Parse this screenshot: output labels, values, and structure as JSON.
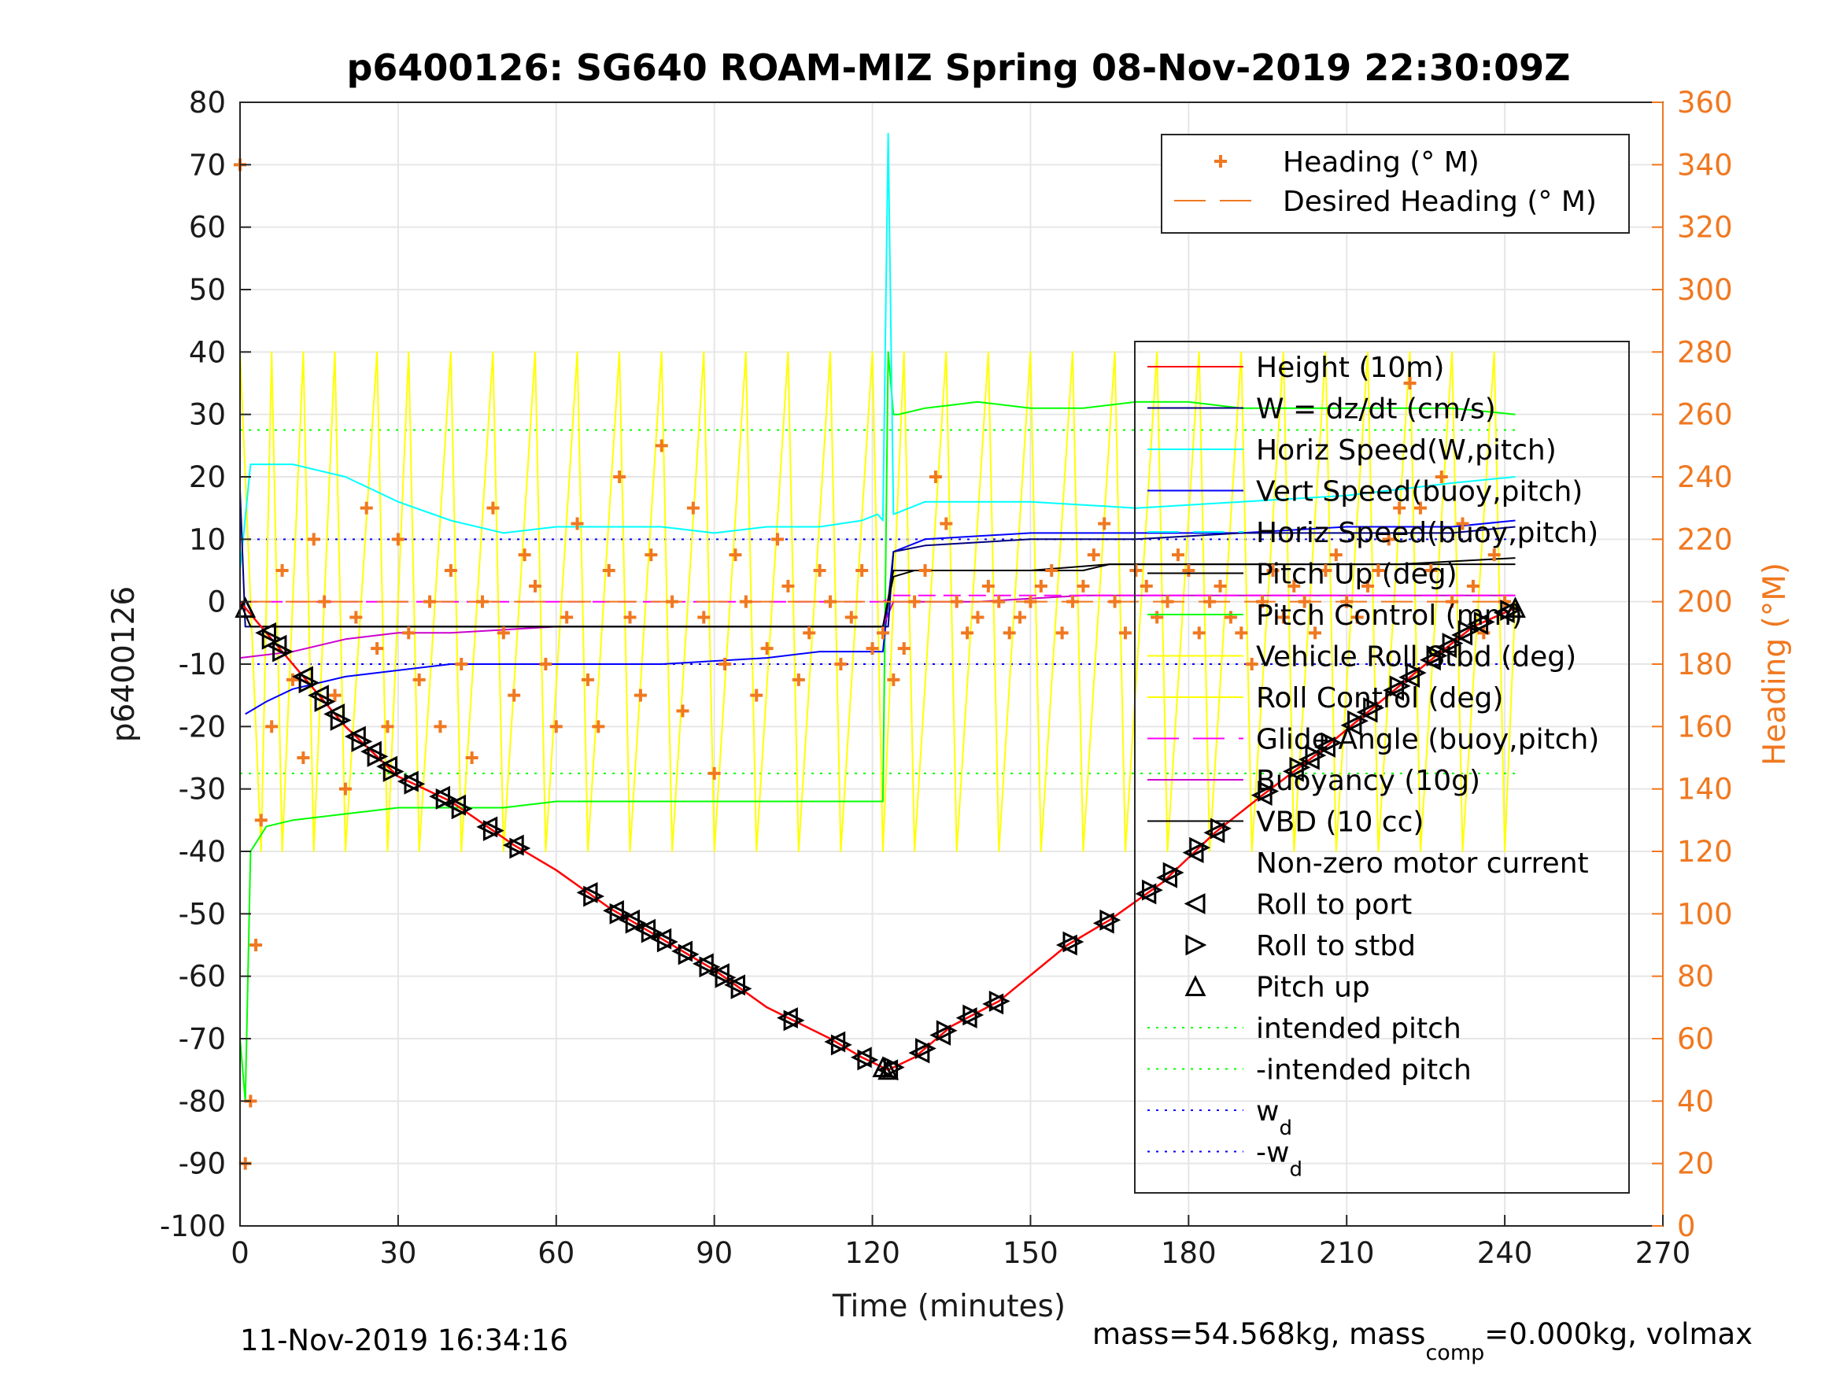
{
  "chart_data": {
    "type": "line",
    "title": "p6400126: SG640 ROAM-MIZ Spring 08-Nov-2019 22:30:09Z",
    "xlabel": "Time (minutes)",
    "ylabel": "p6400126",
    "ylabel_right": "Heading (°M)",
    "xlim": [
      0,
      270
    ],
    "ylim": [
      -100,
      80
    ],
    "ylim_right": [
      0,
      360
    ],
    "x_ticks": [
      "0",
      "30",
      "60",
      "90",
      "120",
      "150",
      "180",
      "210",
      "240",
      "270"
    ],
    "y_ticks": [
      "80",
      "70",
      "60",
      "50",
      "40",
      "30",
      "20",
      "10",
      "0",
      "-10",
      "-20",
      "-30",
      "-40",
      "-50",
      "-60",
      "-70",
      "-80",
      "-90",
      "-100"
    ],
    "y_ticks_right": [
      "360",
      "340",
      "320",
      "300",
      "280",
      "260",
      "240",
      "220",
      "200",
      "180",
      "160",
      "140",
      "120",
      "100",
      "80",
      "60",
      "40",
      "20",
      "0"
    ],
    "grid": true,
    "legend_top": {
      "placement": "top-right",
      "entries": [
        {
          "label": "Heading (° M)",
          "color": "#f07820",
          "marker": "plus"
        },
        {
          "label": "Desired Heading (° M)",
          "color": "#f07820",
          "style": "dashed"
        }
      ]
    },
    "legend_main": {
      "placement": "right",
      "entries": [
        {
          "label": "Height (10m)",
          "color": "#ff0000",
          "style": "solid"
        },
        {
          "label": "W = dz/dt (cm/s)",
          "color": "#00007f",
          "style": "solid"
        },
        {
          "label": "Horiz Speed(W,pitch)",
          "color": "#00ffff",
          "style": "solid"
        },
        {
          "label": "Vert Speed(buoy,pitch)",
          "color": "#0000ff",
          "style": "solid"
        },
        {
          "label": "Horiz Speed(buoy,pitch)",
          "color": "#00ffff",
          "style": "dashed"
        },
        {
          "label": "Pitch Up (deg)",
          "color": "#000000",
          "style": "solid"
        },
        {
          "label": "Pitch Control (mm)",
          "color": "#00ff00",
          "style": "solid"
        },
        {
          "label": "Vehicle Roll Stbd (deg)",
          "color": "#ffff00",
          "style": "solid"
        },
        {
          "label": "Roll Control (deg)",
          "color": "#ffff00",
          "style": "solid"
        },
        {
          "label": "Glide Angle (buoy,pitch)",
          "color": "#ff00ff",
          "style": "dashed"
        },
        {
          "label": "Buoyancy (10g)",
          "color": "#cc00cc",
          "style": "solid"
        },
        {
          "label": "VBD (10 cc)",
          "color": "#000000",
          "style": "solid"
        },
        {
          "label": "Non-zero motor current",
          "color": "#000000",
          "style": "none"
        },
        {
          "label": "Roll to port",
          "color": "#000000",
          "marker": "triangle-left"
        },
        {
          "label": "Roll to stbd",
          "color": "#000000",
          "marker": "triangle-right"
        },
        {
          "label": "Pitch up",
          "color": "#000000",
          "marker": "triangle-up"
        },
        {
          "label": "intended pitch",
          "color": "#00ff00",
          "style": "dotted"
        },
        {
          "label": "-intended pitch",
          "color": "#00ff00",
          "style": "dotted"
        },
        {
          "label": "w",
          "sub": "d",
          "color": "#0000ff",
          "style": "dotted"
        },
        {
          "label": "-w",
          "sub": "d",
          "color": "#0000ff",
          "style": "dotted"
        }
      ]
    },
    "reference_lines": [
      {
        "name": "intended pitch",
        "y": 27.5,
        "color": "#00ff00"
      },
      {
        "name": "-intended pitch",
        "y": -27.5,
        "color": "#00ff00"
      },
      {
        "name": "w_d",
        "y": 10,
        "color": "#0000ff"
      },
      {
        "name": "-w_d",
        "y": -10,
        "color": "#0000ff"
      }
    ],
    "series": [
      {
        "name": "Height (10m)",
        "color": "#ff0000",
        "x": [
          0,
          5,
          10,
          20,
          30,
          40,
          52,
          60,
          70,
          80,
          90,
          100,
          112,
          118,
          123,
          128,
          135,
          144,
          157,
          165,
          175,
          185,
          194,
          205,
          215,
          225,
          234,
          242
        ],
        "y": [
          0,
          -5,
          -10,
          -20,
          -28,
          -32,
          -39,
          -43,
          -49,
          -54,
          -59,
          -65,
          -70,
          -73,
          -75,
          -73,
          -68,
          -64,
          -55,
          -51,
          -45,
          -37,
          -31,
          -24,
          -17,
          -10,
          -4,
          -1
        ]
      },
      {
        "name": "W = dz/dt (cm/s)",
        "color": "#00007f",
        "x": [
          0,
          1,
          5,
          20,
          40,
          60,
          80,
          100,
          122,
          123,
          124,
          130,
          150,
          170,
          190,
          210,
          230,
          242
        ],
        "y": [
          18,
          -4,
          -4,
          -4,
          -4,
          -4,
          -4,
          -4,
          -4,
          -4,
          8,
          9,
          10,
          10,
          11,
          11,
          11,
          12
        ]
      },
      {
        "name": "Horiz Speed(W,pitch)",
        "color": "#00ffff",
        "x": [
          0,
          2,
          10,
          20,
          30,
          40,
          50,
          60,
          70,
          80,
          90,
          100,
          110,
          118,
          121,
          122,
          123,
          124,
          130,
          150,
          170,
          190,
          210,
          230,
          242
        ],
        "y": [
          5,
          22,
          22,
          20,
          16,
          13,
          11,
          12,
          12,
          12,
          11,
          12,
          12,
          13,
          14,
          13,
          75,
          14,
          16,
          16,
          15,
          16,
          17,
          19,
          20
        ]
      },
      {
        "name": "Vert Speed(buoy,pitch)",
        "color": "#0000ff",
        "x": [
          1,
          5,
          10,
          20,
          30,
          40,
          60,
          80,
          100,
          110,
          122,
          124,
          130,
          150,
          170,
          190,
          210,
          230,
          242
        ],
        "y": [
          -18,
          -16,
          -14,
          -12,
          -11,
          -10,
          -10,
          -10,
          -9,
          -8,
          -8,
          8,
          10,
          11,
          11,
          11,
          12,
          12,
          13
        ]
      },
      {
        "name": "Pitch Up (deg)",
        "color": "#000000",
        "x": [
          0,
          2,
          20,
          60,
          100,
          122,
          124,
          130,
          150,
          165,
          180,
          200,
          220,
          242
        ],
        "y": [
          0,
          -4,
          -4,
          -4,
          -4,
          -4,
          5,
          5,
          5,
          6,
          6,
          6,
          6,
          7
        ]
      },
      {
        "name": "Pitch Control (mm)",
        "color": "#00ff00",
        "x": [
          0,
          1,
          2,
          5,
          10,
          20,
          30,
          40,
          50,
          60,
          70,
          80,
          90,
          100,
          110,
          122,
          123,
          124,
          125,
          130,
          140,
          150,
          160,
          170,
          180,
          190,
          200,
          210,
          220,
          230,
          242
        ],
        "y": [
          -70,
          -80,
          -40,
          -36,
          -35,
          -34,
          -33,
          -33,
          -33,
          -32,
          -32,
          -32,
          -32,
          -32,
          -32,
          -32,
          40,
          30,
          30,
          31,
          32,
          31,
          31,
          32,
          32,
          31,
          31,
          31,
          31,
          31,
          30
        ]
      },
      {
        "name": "Glide Angle (buoy,pitch)",
        "color": "#ff00ff",
        "x": [
          0,
          10,
          20,
          40,
          60,
          80,
          100,
          122,
          124,
          150,
          180,
          210,
          242
        ],
        "y": [
          0,
          0,
          0,
          0,
          0,
          0,
          0,
          0,
          1,
          1,
          1,
          1,
          1
        ]
      },
      {
        "name": "Buoyancy (10g)",
        "color": "#cc00cc",
        "x": [
          0,
          10,
          20,
          30,
          40,
          60,
          80,
          100,
          122,
          124,
          140,
          160,
          180,
          200,
          220,
          242
        ],
        "y": [
          -9,
          -8,
          -6,
          -5,
          -5,
          -4,
          -4,
          -4,
          -4,
          0,
          0,
          1,
          1,
          1,
          1,
          1
        ]
      },
      {
        "name": "VBD (10 cc)",
        "color": "#000000",
        "x": [
          0,
          2,
          20,
          40,
          60,
          80,
          100,
          122,
          124,
          128,
          150,
          160,
          165,
          180,
          200,
          220,
          242
        ],
        "y": [
          0,
          -4,
          -4,
          -4,
          -4,
          -4,
          -4,
          -4,
          4,
          5,
          5,
          5,
          6,
          6,
          6,
          6,
          6
        ]
      },
      {
        "name": "Roll Control (deg)",
        "color": "#ffff00",
        "x": [
          0,
          4,
          6,
          8,
          12,
          14,
          18,
          20,
          26,
          28,
          32,
          34,
          40,
          42,
          48,
          50,
          56,
          58,
          64,
          66,
          72,
          74,
          80,
          82,
          88,
          90,
          96,
          98,
          104,
          106,
          112,
          114,
          120,
          122,
          126,
          128,
          134,
          136,
          142,
          144,
          150,
          152,
          158,
          160,
          166,
          168,
          174,
          176,
          182,
          184,
          190,
          192,
          198,
          200,
          206,
          208,
          214,
          216,
          222,
          224,
          230,
          232,
          238,
          240,
          242
        ],
        "y": [
          40,
          -40,
          40,
          -40,
          40,
          -40,
          40,
          -40,
          40,
          -40,
          40,
          -40,
          40,
          -40,
          40,
          -40,
          40,
          -40,
          40,
          -40,
          40,
          -40,
          40,
          -40,
          40,
          -40,
          40,
          -40,
          40,
          -40,
          40,
          -40,
          40,
          -40,
          40,
          -40,
          40,
          -40,
          40,
          -40,
          40,
          -40,
          40,
          -40,
          40,
          -40,
          40,
          -40,
          40,
          -40,
          40,
          -40,
          40,
          -40,
          40,
          -40,
          40,
          -40,
          40,
          -40,
          40,
          -40,
          40,
          -40,
          0
        ]
      }
    ],
    "heading_series": {
      "name": "Heading (° M)",
      "color": "#f07820",
      "axis": "right",
      "x": [
        0,
        1,
        2,
        3,
        4,
        6,
        8,
        10,
        12,
        14,
        16,
        18,
        20,
        22,
        24,
        26,
        28,
        30,
        32,
        34,
        36,
        38,
        40,
        42,
        44,
        46,
        48,
        50,
        52,
        54,
        56,
        58,
        60,
        62,
        64,
        66,
        68,
        70,
        72,
        74,
        76,
        78,
        80,
        82,
        84,
        86,
        88,
        90,
        92,
        94,
        96,
        98,
        100,
        102,
        104,
        106,
        108,
        110,
        112,
        114,
        116,
        118,
        120,
        122,
        124,
        126,
        128,
        130,
        132,
        134,
        136,
        138,
        140,
        142,
        144,
        146,
        148,
        150,
        152,
        154,
        156,
        158,
        160,
        162,
        164,
        166,
        168,
        170,
        172,
        174,
        176,
        178,
        180,
        182,
        184,
        186,
        188,
        190,
        192,
        194,
        196,
        198,
        200,
        202,
        204,
        206,
        208,
        210,
        212,
        214,
        216,
        218,
        220,
        222,
        224,
        226,
        228,
        230,
        232,
        234,
        236,
        238,
        240
      ],
      "y": [
        340,
        20,
        40,
        90,
        130,
        160,
        210,
        175,
        150,
        220,
        200,
        170,
        140,
        195,
        230,
        185,
        160,
        220,
        190,
        175,
        200,
        160,
        210,
        180,
        150,
        200,
        230,
        190,
        170,
        215,
        205,
        180,
        160,
        195,
        225,
        175,
        160,
        210,
        240,
        195,
        170,
        215,
        250,
        200,
        165,
        230,
        195,
        145,
        180,
        215,
        200,
        170,
        185,
        220,
        205,
        175,
        190,
        210,
        200,
        180,
        195,
        210,
        185,
        190,
        175,
        185,
        200,
        210,
        240,
        225,
        200,
        190,
        195,
        205,
        200,
        190,
        195,
        200,
        205,
        210,
        190,
        200,
        205,
        215,
        225,
        200,
        190,
        210,
        205,
        195,
        200,
        215,
        210,
        190,
        200,
        205,
        195,
        190,
        180,
        200,
        210,
        195,
        205,
        200,
        190,
        210,
        215,
        200,
        195,
        205,
        210,
        220,
        230,
        270,
        230,
        210,
        240,
        200,
        225,
        205,
        190,
        215,
        200
      ]
    },
    "desired_heading": {
      "name": "Desired Heading (° M)",
      "color": "#f07820",
      "axis": "right",
      "x": [
        0,
        242
      ],
      "y": [
        200,
        200
      ]
    },
    "markers": {
      "roll_to_port_x": [
        5,
        7,
        12,
        15,
        18,
        22,
        25,
        28,
        32,
        38,
        41,
        47,
        52,
        66,
        71,
        74,
        77,
        80,
        84,
        88,
        91,
        94,
        104,
        113,
        118,
        123,
        129,
        133,
        138,
        143,
        157,
        164,
        172,
        176,
        181,
        185,
        194,
        200,
        203,
        206,
        211,
        214,
        219,
        222,
        226,
        229,
        232,
        235,
        240
      ],
      "roll_to_stbd_x": [
        6,
        8,
        13,
        16,
        19,
        23,
        26,
        29,
        33,
        39,
        42,
        48,
        53,
        67,
        72,
        75,
        78,
        81,
        85,
        89,
        92,
        95,
        105,
        114,
        119,
        124,
        130,
        134,
        139,
        144,
        158,
        165,
        173,
        177,
        182,
        186,
        195,
        201,
        204,
        207,
        212,
        215,
        220,
        223,
        227,
        230,
        233,
        236,
        241
      ],
      "pitch_up_x": [
        1,
        122,
        123,
        242
      ]
    }
  },
  "footer": {
    "timestamp": "11-Nov-2019 16:34:16",
    "mass_text_1": "mass=54.568kg, mass",
    "mass_sub": "comp",
    "mass_text_2": "=0.000kg, volmax"
  }
}
